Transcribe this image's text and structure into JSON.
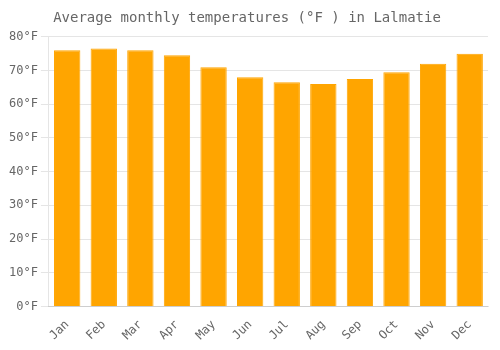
{
  "chart_data": {
    "type": "bar",
    "title": "Average monthly temperatures (°F ) in Lalmatie",
    "categories": [
      "Jan",
      "Feb",
      "Mar",
      "Apr",
      "May",
      "Jun",
      "Jul",
      "Aug",
      "Sep",
      "Oct",
      "Nov",
      "Dec"
    ],
    "values": [
      76.0,
      76.5,
      76.0,
      74.5,
      71.0,
      68.0,
      66.5,
      66.0,
      67.5,
      69.5,
      72.0,
      75.0
    ],
    "color": "#FFA500",
    "ylim": [
      0,
      80
    ],
    "yticks": [
      {
        "value": 0,
        "label": "0°F"
      },
      {
        "value": 10,
        "label": "10°F"
      },
      {
        "value": 20,
        "label": "20°F"
      },
      {
        "value": 30,
        "label": "30°F"
      },
      {
        "value": 40,
        "label": "40°F"
      },
      {
        "value": 50,
        "label": "50°F"
      },
      {
        "value": 60,
        "label": "60°F"
      },
      {
        "value": 70,
        "label": "70°F"
      },
      {
        "value": 80,
        "label": "80°F"
      }
    ],
    "grid": true
  }
}
